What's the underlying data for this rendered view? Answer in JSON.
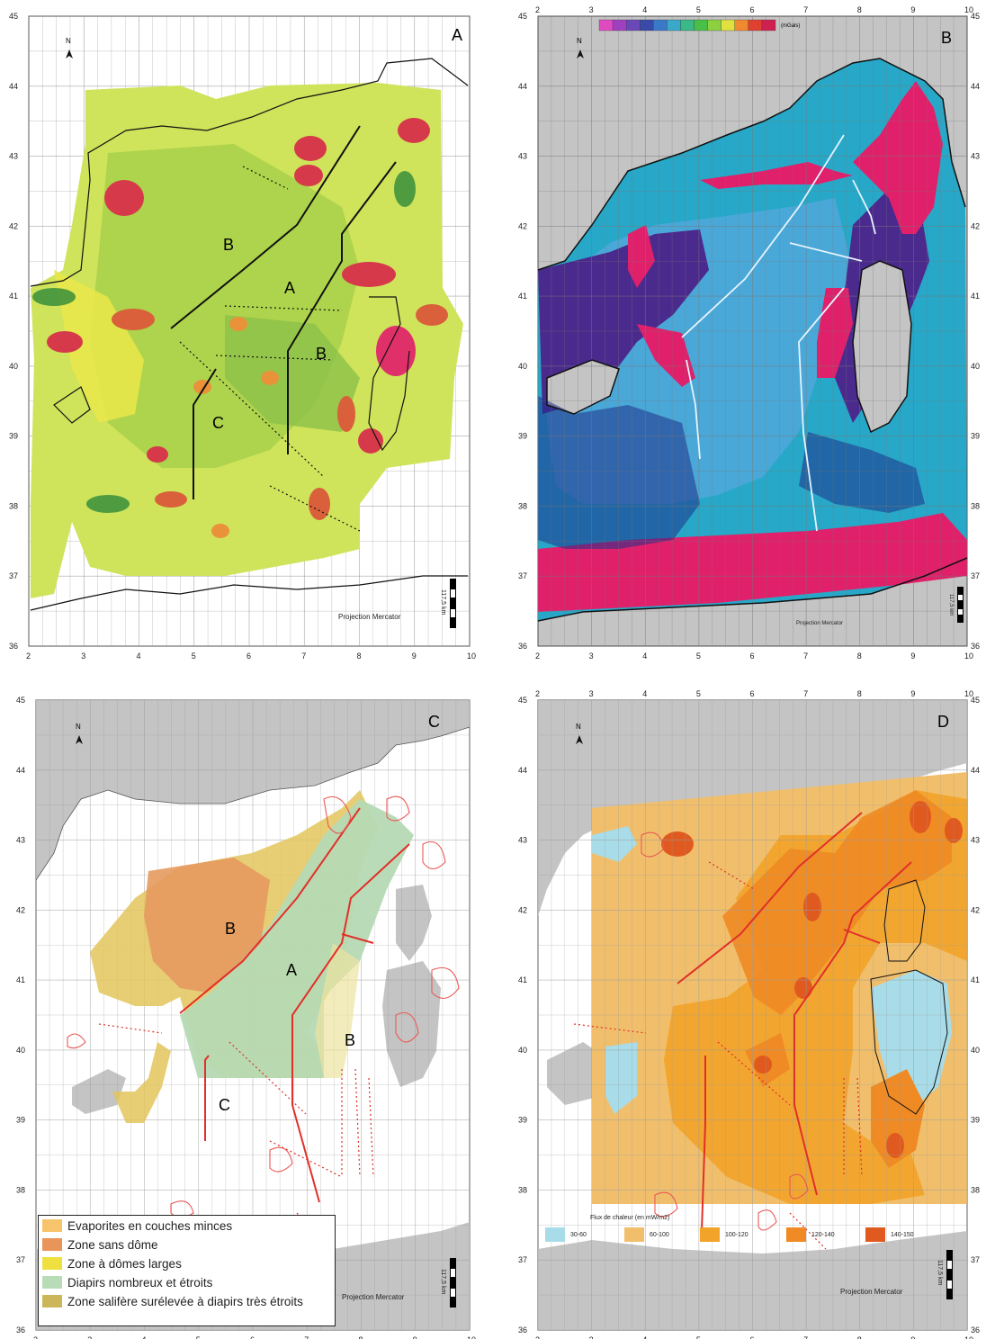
{
  "panels": [
    {
      "id": "A",
      "letter": "A",
      "zones": [
        "A",
        "B",
        "B",
        "C"
      ],
      "projection": "Projection Mercator",
      "scale_label": "117,5 km"
    },
    {
      "id": "B",
      "letter": "B",
      "colorbar_unit": "(mGals)",
      "projection": "Projection Mercator",
      "scale_label": "117,5 km"
    },
    {
      "id": "C",
      "letter": "C",
      "zones": [
        "A",
        "B",
        "B",
        "C"
      ],
      "projection": "Projection Mercator",
      "scale_label": "117,5 km"
    },
    {
      "id": "D",
      "letter": "D",
      "projection": "Projection Mercator",
      "scale_label": "117,5 km"
    }
  ],
  "north_label": "N",
  "axes": {
    "lon_ticks": [
      "2",
      "3",
      "4",
      "5",
      "6",
      "7",
      "8",
      "9",
      "10"
    ],
    "lat_ticks": [
      "45",
      "44",
      "43",
      "42",
      "41",
      "40",
      "39",
      "38",
      "37",
      "36"
    ]
  },
  "legend_c": [
    {
      "label": "Evaporites en couches minces",
      "color": "#f7c36b"
    },
    {
      "label": "Zone sans dôme",
      "color": "#e9955a"
    },
    {
      "label": "Zone à dômes larges",
      "color": "#efe040"
    },
    {
      "label": "Diapirs nombreux et étroits",
      "color": "#b9dcb8"
    },
    {
      "label": "Zone salifère surélevée à diapirs très étroits",
      "color": "#cdb55a"
    }
  ],
  "heat_flow_legend": {
    "title": "Flux de chaleur (en mW/m2)",
    "items": [
      {
        "label": "30-60",
        "color": "#a8dce8"
      },
      {
        "label": "60-100",
        "color": "#f1bf6c"
      },
      {
        "label": "100-120",
        "color": "#f2a329"
      },
      {
        "label": "120-140",
        "color": "#ef8a24"
      },
      {
        "label": "140-150",
        "color": "#e05a1f"
      }
    ]
  },
  "colors": {
    "land_grey": "#c4c4c4",
    "grid": "#9a9a9a",
    "fault_red": "#e0302a",
    "fault_black": "#111111"
  }
}
